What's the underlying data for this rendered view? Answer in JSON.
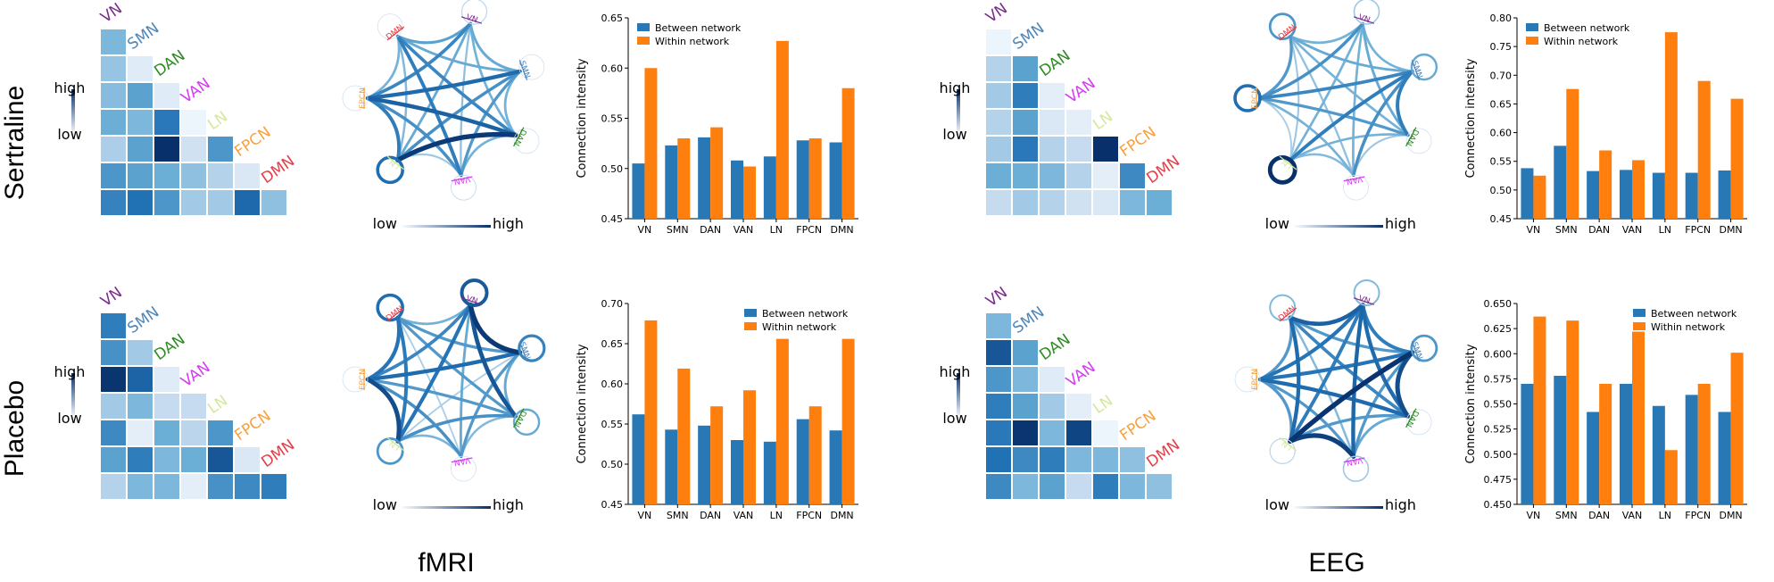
{
  "networks": [
    "VN",
    "SMN",
    "DAN",
    "VAN",
    "LN",
    "FPCN",
    "DMN"
  ],
  "network_colors": [
    "#7b2d8b",
    "#4f86b8",
    "#2e8b24",
    "#d43cf0",
    "#d4e89c",
    "#f7a23a",
    "#e0404a"
  ],
  "colors": {
    "between": "#2878b5",
    "within": "#ff7f0e",
    "blue_dark": "#08306b",
    "blue_light": "#f7fbff"
  },
  "row_labels": [
    "Sertraline",
    "Placebo"
  ],
  "modality_labels": [
    "fMRI",
    "EEG"
  ],
  "scale_labels": {
    "high": "high",
    "low": "low"
  },
  "bar_legend": {
    "between": "Between network",
    "within": "Within network"
  },
  "y_axis_label": "Connection intensity",
  "heatmaps": [
    {
      "panel": "Sertraline-fMRI",
      "rows": [
        [
          0.45
        ],
        [
          0.38,
          0.12
        ],
        [
          0.42,
          0.55,
          0.12
        ],
        [
          0.5,
          0.45,
          0.72,
          0.05
        ],
        [
          0.32,
          0.55,
          1.0,
          0.2,
          0.6
        ],
        [
          0.6,
          0.55,
          0.5,
          0.4,
          0.3,
          0.15
        ],
        [
          0.68,
          0.75,
          0.6,
          0.35,
          0.35,
          0.78,
          0.4
        ]
      ]
    },
    {
      "panel": "Sertraline-EEG",
      "rows": [
        [
          0.05
        ],
        [
          0.3,
          0.55
        ],
        [
          0.35,
          0.7,
          0.1
        ],
        [
          0.3,
          0.55,
          0.15,
          0.1
        ],
        [
          0.35,
          0.72,
          0.3,
          0.25,
          1.0
        ],
        [
          0.5,
          0.5,
          0.45,
          0.3,
          0.1,
          0.65
        ],
        [
          0.25,
          0.35,
          0.3,
          0.2,
          0.15,
          0.45,
          0.5
        ]
      ]
    },
    {
      "panel": "Placebo-fMRI",
      "rows": [
        [
          0.7
        ],
        [
          0.62,
          0.35
        ],
        [
          0.98,
          0.8,
          0.12
        ],
        [
          0.35,
          0.45,
          0.25,
          0.25
        ],
        [
          0.65,
          0.1,
          0.5,
          0.28,
          0.6
        ],
        [
          0.55,
          0.7,
          0.45,
          0.5,
          0.85,
          0.15
        ],
        [
          0.3,
          0.45,
          0.45,
          0.1,
          0.62,
          0.65,
          0.7
        ]
      ]
    },
    {
      "panel": "Placebo-EEG",
      "rows": [
        [
          0.45
        ],
        [
          0.85,
          0.55
        ],
        [
          0.6,
          0.45,
          0.12
        ],
        [
          0.7,
          0.55,
          0.35,
          0.1
        ],
        [
          0.72,
          0.98,
          0.45,
          0.92,
          0.05
        ],
        [
          0.75,
          0.65,
          0.7,
          0.45,
          0.45,
          0.4
        ],
        [
          0.65,
          0.45,
          0.55,
          0.25,
          0.7,
          0.45,
          0.4
        ]
      ]
    }
  ],
  "chart_data": [
    {
      "type": "bar",
      "panel": "Sertraline-fMRI",
      "categories": [
        "VN",
        "SMN",
        "DAN",
        "VAN",
        "LN",
        "FPCN",
        "DMN"
      ],
      "series": [
        {
          "name": "Between network",
          "values": [
            0.505,
            0.523,
            0.531,
            0.508,
            0.512,
            0.528,
            0.526
          ]
        },
        {
          "name": "Within network",
          "values": [
            0.6,
            0.53,
            0.541,
            0.502,
            0.627,
            0.53,
            0.58
          ]
        }
      ],
      "ylabel": "Connection intensity",
      "ylim": [
        0.45,
        0.65
      ],
      "yticks": [
        "0.45",
        "0.50",
        "0.55",
        "0.60",
        "0.65"
      ],
      "legend": "top-left"
    },
    {
      "type": "bar",
      "panel": "Sertraline-EEG",
      "categories": [
        "VN",
        "SMN",
        "DAN",
        "VAN",
        "LN",
        "FPCN",
        "DMN"
      ],
      "series": [
        {
          "name": "Between network",
          "values": [
            0.538,
            0.577,
            0.533,
            0.535,
            0.53,
            0.53,
            0.534
          ]
        },
        {
          "name": "Within network",
          "values": [
            0.525,
            0.676,
            0.569,
            0.552,
            0.775,
            0.69,
            0.659
          ]
        }
      ],
      "ylabel": "Connection intensity",
      "ylim": [
        0.45,
        0.8
      ],
      "yticks": [
        "0.45",
        "0.50",
        "0.55",
        "0.60",
        "0.65",
        "0.70",
        "0.75",
        "0.80"
      ],
      "legend": "top-left"
    },
    {
      "type": "bar",
      "panel": "Placebo-fMRI",
      "categories": [
        "VN",
        "SMN",
        "DAN",
        "VAN",
        "LN",
        "FPCN",
        "DMN"
      ],
      "series": [
        {
          "name": "Between network",
          "values": [
            0.562,
            0.543,
            0.548,
            0.53,
            0.528,
            0.556,
            0.542
          ]
        },
        {
          "name": "Within network",
          "values": [
            0.679,
            0.619,
            0.572,
            0.592,
            0.656,
            0.572,
            0.656
          ]
        }
      ],
      "ylabel": "Connection intensity",
      "ylim": [
        0.45,
        0.7
      ],
      "yticks": [
        "0.45",
        "0.50",
        "0.55",
        "0.60",
        "0.65",
        "0.70"
      ],
      "legend": "top-right"
    },
    {
      "type": "bar",
      "panel": "Placebo-EEG",
      "categories": [
        "VN",
        "SMN",
        "DAN",
        "VAN",
        "LN",
        "FPCN",
        "DMN"
      ],
      "series": [
        {
          "name": "Between network",
          "values": [
            0.57,
            0.578,
            0.542,
            0.57,
            0.548,
            0.559,
            0.542
          ]
        },
        {
          "name": "Within network",
          "values": [
            0.637,
            0.633,
            0.57,
            0.622,
            0.504,
            0.57,
            0.601
          ]
        }
      ],
      "ylabel": "Connection intensity",
      "ylim": [
        0.45,
        0.65
      ],
      "yticks": [
        "0.450",
        "0.475",
        "0.500",
        "0.525",
        "0.550",
        "0.575",
        "0.600",
        "0.625",
        "0.650"
      ],
      "legend": "top-right"
    }
  ],
  "circles": [
    {
      "panel": "Sertraline-fMRI",
      "show_scale": true,
      "self_loops": [
        0.1,
        0.0,
        0.0,
        0.05,
        0.7,
        0.0,
        0.0
      ],
      "edges": [
        [
          0,
          1,
          0.35
        ],
        [
          0,
          2,
          0.3
        ],
        [
          0,
          3,
          0.2
        ],
        [
          0,
          4,
          0.35
        ],
        [
          0,
          5,
          0.55
        ],
        [
          0,
          6,
          0.4
        ],
        [
          1,
          2,
          0.3
        ],
        [
          1,
          3,
          0.45
        ],
        [
          1,
          4,
          0.5
        ],
        [
          1,
          5,
          0.7
        ],
        [
          1,
          6,
          0.35
        ],
        [
          2,
          3,
          0.3
        ],
        [
          2,
          4,
          0.95
        ],
        [
          2,
          5,
          0.75
        ],
        [
          2,
          6,
          0.55
        ],
        [
          3,
          4,
          0.15
        ],
        [
          3,
          5,
          0.5
        ],
        [
          3,
          6,
          0.6
        ],
        [
          4,
          5,
          0.6
        ],
        [
          4,
          6,
          0.25
        ],
        [
          5,
          6,
          0.3
        ]
      ]
    },
    {
      "panel": "Sertraline-EEG",
      "show_scale": true,
      "self_loops": [
        0.2,
        0.4,
        0.0,
        0.0,
        1.0,
        0.7,
        0.5
      ],
      "edges": [
        [
          0,
          1,
          0.3
        ],
        [
          0,
          2,
          0.35
        ],
        [
          0,
          3,
          0.3
        ],
        [
          0,
          4,
          0.3
        ],
        [
          0,
          5,
          0.5
        ],
        [
          0,
          6,
          0.3
        ],
        [
          1,
          2,
          0.6
        ],
        [
          1,
          3,
          0.5
        ],
        [
          1,
          4,
          0.6
        ],
        [
          1,
          5,
          0.55
        ],
        [
          1,
          6,
          0.35
        ],
        [
          2,
          3,
          0.15
        ],
        [
          2,
          4,
          0.3
        ],
        [
          2,
          5,
          0.45
        ],
        [
          2,
          6,
          0.3
        ],
        [
          3,
          4,
          0.25
        ],
        [
          3,
          5,
          0.3
        ],
        [
          3,
          6,
          0.2
        ],
        [
          4,
          5,
          0.1
        ],
        [
          4,
          6,
          0.15
        ],
        [
          5,
          6,
          0.45
        ]
      ]
    },
    {
      "panel": "Placebo-fMRI",
      "show_scale": true,
      "self_loops": [
        0.8,
        0.6,
        0.4,
        0.0,
        0.5,
        0.0,
        0.7
      ],
      "edges": [
        [
          0,
          1,
          0.95
        ],
        [
          0,
          2,
          0.8
        ],
        [
          0,
          3,
          0.35
        ],
        [
          0,
          4,
          0.65
        ],
        [
          0,
          5,
          0.55
        ],
        [
          0,
          6,
          0.3
        ],
        [
          1,
          2,
          0.35
        ],
        [
          1,
          3,
          0.45
        ],
        [
          1,
          4,
          0.1
        ],
        [
          1,
          5,
          0.7
        ],
        [
          1,
          6,
          0.45
        ],
        [
          2,
          3,
          0.25
        ],
        [
          2,
          4,
          0.5
        ],
        [
          2,
          5,
          0.45
        ],
        [
          2,
          6,
          0.45
        ],
        [
          3,
          4,
          0.28
        ],
        [
          3,
          5,
          0.5
        ],
        [
          3,
          6,
          0.1
        ],
        [
          4,
          5,
          0.85
        ],
        [
          4,
          6,
          0.62
        ],
        [
          5,
          6,
          0.65
        ]
      ]
    },
    {
      "panel": "Placebo-EEG",
      "show_scale": true,
      "self_loops": [
        0.3,
        0.5,
        0.0,
        0.2,
        0.1,
        0.0,
        0.3
      ],
      "edges": [
        [
          0,
          1,
          0.6
        ],
        [
          0,
          2,
          0.7
        ],
        [
          0,
          3,
          0.72
        ],
        [
          0,
          4,
          0.6
        ],
        [
          0,
          5,
          0.65
        ],
        [
          0,
          6,
          0.75
        ],
        [
          1,
          2,
          0.85
        ],
        [
          1,
          3,
          0.45
        ],
        [
          1,
          4,
          0.98
        ],
        [
          1,
          5,
          0.65
        ],
        [
          1,
          6,
          0.45
        ],
        [
          2,
          3,
          0.35
        ],
        [
          2,
          4,
          0.45
        ],
        [
          2,
          5,
          0.7
        ],
        [
          2,
          6,
          0.55
        ],
        [
          3,
          4,
          0.92
        ],
        [
          3,
          5,
          0.45
        ],
        [
          3,
          6,
          0.25
        ],
        [
          4,
          5,
          0.45
        ],
        [
          4,
          6,
          0.7
        ],
        [
          5,
          6,
          0.45
        ]
      ]
    }
  ]
}
